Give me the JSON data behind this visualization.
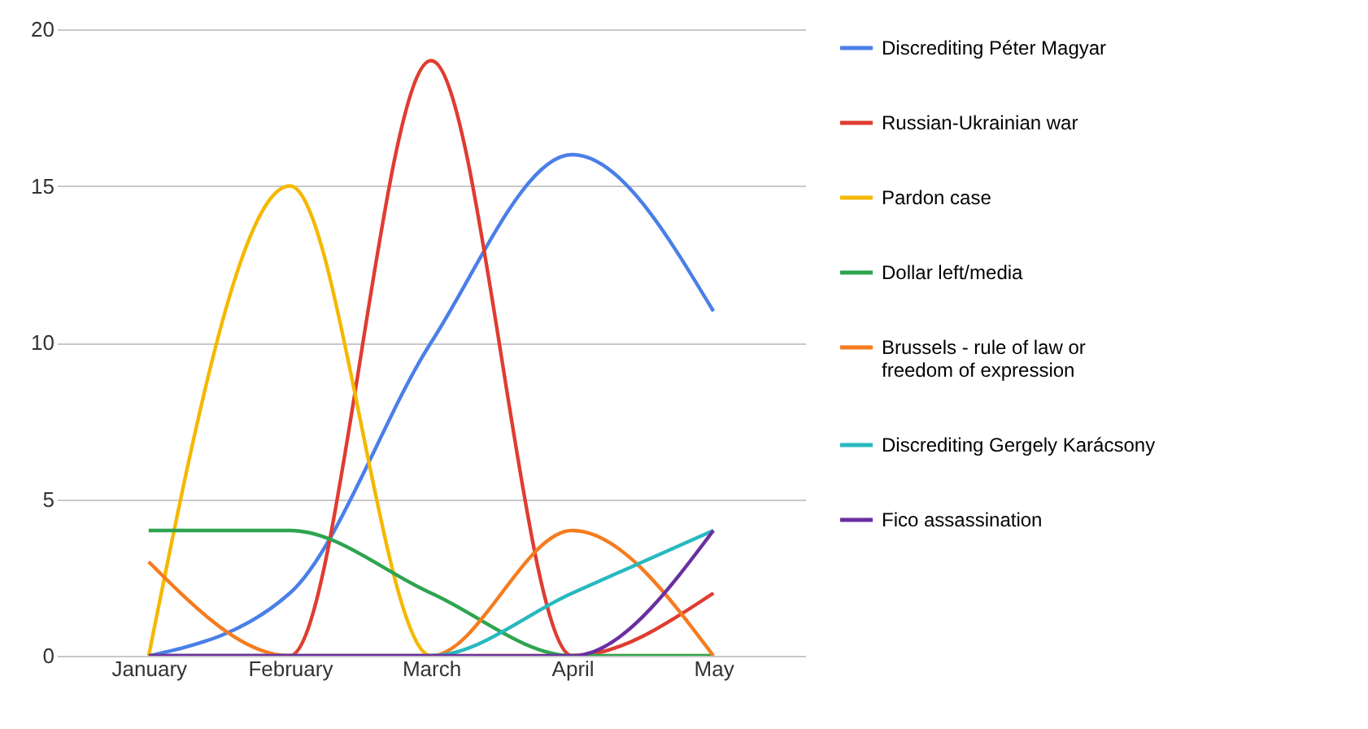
{
  "chart_data": {
    "type": "line",
    "categories": [
      "January",
      "February",
      "March",
      "April",
      "May"
    ],
    "series": [
      {
        "name": "Discrediting Péter Magyar",
        "color": "#4a7fe8",
        "values": [
          0,
          2,
          10,
          16,
          11
        ]
      },
      {
        "name": "Russian-Ukrainian war",
        "color": "#e03c31",
        "values": [
          0,
          0,
          19,
          0,
          2
        ]
      },
      {
        "name": "Pardon case",
        "color": "#f5b800",
        "values": [
          0,
          15,
          0,
          0,
          0
        ]
      },
      {
        "name": "Dollar left/media",
        "color": "#2ea44f",
        "values": [
          4,
          4,
          2,
          0,
          0
        ]
      },
      {
        "name": "Brussels - rule of law or freedom of expression",
        "color": "#f57c1f",
        "values": [
          3,
          0,
          0,
          4,
          0
        ]
      },
      {
        "name": "Discrediting Gergely Karácsony",
        "color": "#28b8c0",
        "values": [
          0,
          0,
          0,
          2,
          4
        ]
      },
      {
        "name": "Fico assassination",
        "color": "#6a2fa0",
        "values": [
          0,
          0,
          0,
          0,
          4
        ]
      }
    ],
    "ylim": [
      0,
      20
    ],
    "yticks": [
      0,
      5,
      10,
      15,
      20
    ],
    "grid": "y",
    "legend": "right"
  }
}
